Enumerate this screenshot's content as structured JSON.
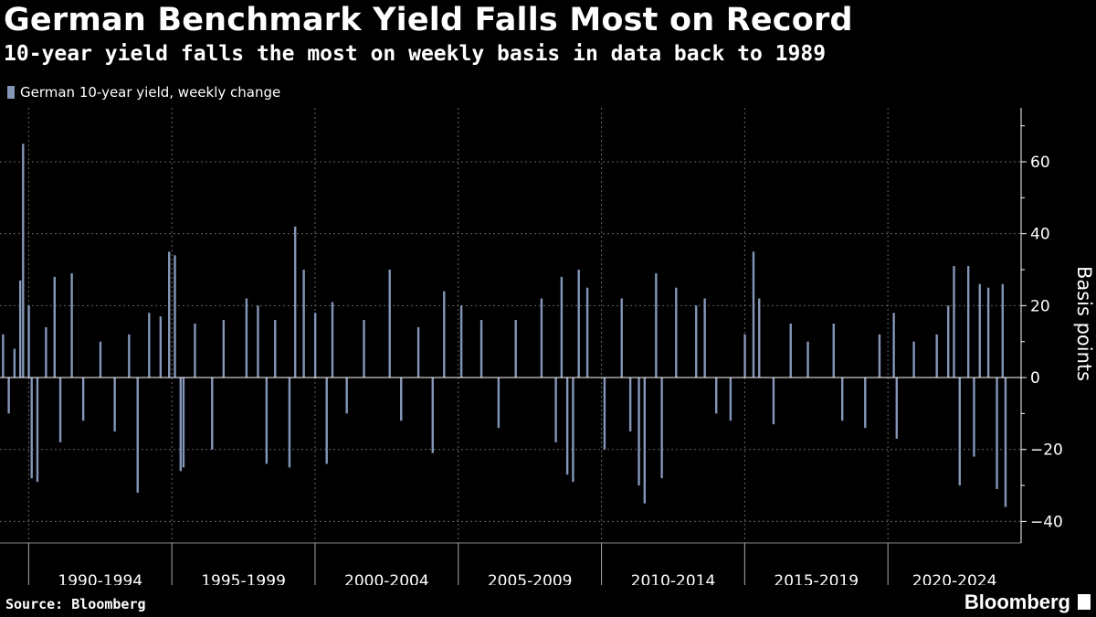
{
  "header": {
    "title": "German Benchmark Yield Falls Most on Record",
    "subtitle": "10-year yield falls the most on weekly basis in data back to 1989"
  },
  "footer": {
    "source": "Source: Bloomberg",
    "brand": "Bloomberg"
  },
  "colors": {
    "bar": "#8496b8",
    "background": "#000000",
    "grid": "#666666",
    "text": "#ffffff"
  },
  "chart_data": {
    "type": "bar",
    "legend": [
      "German 10-year yield, weekly change"
    ],
    "ylabel": "Basis points",
    "xlabel": "",
    "ylim": [
      -46,
      75
    ],
    "yticks": [
      -40,
      -20,
      0,
      20,
      40,
      60
    ],
    "x_range": [
      1989.0,
      2024.65
    ],
    "x_period_labels": [
      {
        "label": "1990-1994",
        "start": 1990,
        "end": 1995
      },
      {
        "label": "1995-1999",
        "start": 1995,
        "end": 2000
      },
      {
        "label": "2000-2004",
        "start": 2000,
        "end": 2005
      },
      {
        "label": "2005-2009",
        "start": 2005,
        "end": 2010
      },
      {
        "label": "2010-2014",
        "start": 2010,
        "end": 2015
      },
      {
        "label": "2015-2019",
        "start": 2015,
        "end": 2020
      },
      {
        "label": "2020-2024",
        "start": 2020,
        "end": 2024.65
      }
    ],
    "grid": true,
    "legend_position": "top-left",
    "series": [
      {
        "name": "German 10-year yield, weekly change",
        "points": [
          {
            "x": 1989.1,
            "y": 12
          },
          {
            "x": 1989.3,
            "y": -10
          },
          {
            "x": 1989.5,
            "y": 8
          },
          {
            "x": 1989.7,
            "y": 27
          },
          {
            "x": 1989.8,
            "y": 65
          },
          {
            "x": 1990.0,
            "y": 20
          },
          {
            "x": 1990.1,
            "y": -28
          },
          {
            "x": 1990.3,
            "y": -29
          },
          {
            "x": 1990.6,
            "y": 14
          },
          {
            "x": 1990.9,
            "y": 28
          },
          {
            "x": 1991.1,
            "y": -18
          },
          {
            "x": 1991.5,
            "y": 29
          },
          {
            "x": 1991.9,
            "y": -12
          },
          {
            "x": 1992.5,
            "y": 10
          },
          {
            "x": 1993.0,
            "y": -15
          },
          {
            "x": 1993.5,
            "y": 12
          },
          {
            "x": 1993.8,
            "y": -32
          },
          {
            "x": 1994.2,
            "y": 18
          },
          {
            "x": 1994.6,
            "y": 17
          },
          {
            "x": 1994.9,
            "y": 35
          },
          {
            "x": 1995.1,
            "y": 34
          },
          {
            "x": 1995.3,
            "y": -26
          },
          {
            "x": 1995.4,
            "y": -25
          },
          {
            "x": 1995.8,
            "y": 15
          },
          {
            "x": 1996.4,
            "y": -20
          },
          {
            "x": 1996.8,
            "y": 16
          },
          {
            "x": 1997.6,
            "y": 22
          },
          {
            "x": 1998.0,
            "y": 20
          },
          {
            "x": 1998.3,
            "y": -24
          },
          {
            "x": 1998.6,
            "y": 16
          },
          {
            "x": 1999.1,
            "y": -25
          },
          {
            "x": 1999.3,
            "y": 42
          },
          {
            "x": 1999.6,
            "y": 30
          },
          {
            "x": 2000.0,
            "y": 18
          },
          {
            "x": 2000.4,
            "y": -24
          },
          {
            "x": 2000.6,
            "y": 21
          },
          {
            "x": 2001.1,
            "y": -10
          },
          {
            "x": 2001.7,
            "y": 16
          },
          {
            "x": 2002.6,
            "y": 30
          },
          {
            "x": 2003.0,
            "y": -12
          },
          {
            "x": 2003.6,
            "y": 14
          },
          {
            "x": 2004.1,
            "y": -21
          },
          {
            "x": 2004.5,
            "y": 24
          },
          {
            "x": 2005.1,
            "y": 20
          },
          {
            "x": 2005.8,
            "y": 16
          },
          {
            "x": 2006.4,
            "y": -14
          },
          {
            "x": 2007.0,
            "y": 16
          },
          {
            "x": 2007.9,
            "y": 22
          },
          {
            "x": 2008.4,
            "y": -18
          },
          {
            "x": 2008.6,
            "y": 28
          },
          {
            "x": 2008.8,
            "y": -27
          },
          {
            "x": 2009.0,
            "y": -29
          },
          {
            "x": 2009.2,
            "y": 30
          },
          {
            "x": 2009.5,
            "y": 25
          },
          {
            "x": 2010.1,
            "y": -20
          },
          {
            "x": 2010.7,
            "y": 22
          },
          {
            "x": 2011.0,
            "y": -15
          },
          {
            "x": 2011.3,
            "y": -30
          },
          {
            "x": 2011.5,
            "y": -35
          },
          {
            "x": 2011.9,
            "y": 29
          },
          {
            "x": 2012.1,
            "y": -28
          },
          {
            "x": 2012.6,
            "y": 25
          },
          {
            "x": 2013.3,
            "y": 20
          },
          {
            "x": 2013.6,
            "y": 22
          },
          {
            "x": 2014.0,
            "y": -10
          },
          {
            "x": 2014.5,
            "y": -12
          },
          {
            "x": 2015.0,
            "y": 12
          },
          {
            "x": 2015.3,
            "y": 35
          },
          {
            "x": 2015.5,
            "y": 22
          },
          {
            "x": 2016.0,
            "y": -13
          },
          {
            "x": 2016.6,
            "y": 15
          },
          {
            "x": 2017.2,
            "y": 10
          },
          {
            "x": 2018.1,
            "y": 15
          },
          {
            "x": 2018.4,
            "y": -12
          },
          {
            "x": 2019.2,
            "y": -14
          },
          {
            "x": 2019.7,
            "y": 12
          },
          {
            "x": 2020.2,
            "y": 18
          },
          {
            "x": 2020.3,
            "y": -17
          },
          {
            "x": 2020.9,
            "y": 10
          },
          {
            "x": 2021.7,
            "y": 12
          },
          {
            "x": 2022.1,
            "y": 20
          },
          {
            "x": 2022.3,
            "y": 31
          },
          {
            "x": 2022.5,
            "y": -30
          },
          {
            "x": 2022.8,
            "y": 31
          },
          {
            "x": 2023.0,
            "y": -22
          },
          {
            "x": 2023.2,
            "y": 26
          },
          {
            "x": 2023.5,
            "y": 25
          },
          {
            "x": 2023.8,
            "y": -31
          },
          {
            "x": 2024.0,
            "y": 26
          },
          {
            "x": 2024.1,
            "y": -36
          }
        ]
      }
    ]
  }
}
